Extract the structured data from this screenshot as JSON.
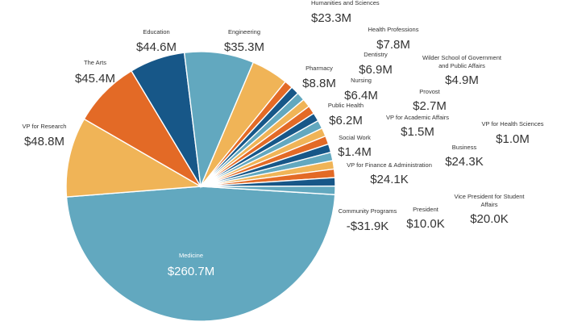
{
  "chart_data": {
    "type": "pie",
    "title": "",
    "colors": {
      "teal": "#62a8bf",
      "sand": "#f0b457",
      "orange": "#e36a26",
      "navy": "#175788"
    },
    "slices": [
      {
        "name": "Medicine",
        "label": "$260.7M",
        "value": 260.7,
        "color": "#62a8bf"
      },
      {
        "name": "VP for Research",
        "label": "$48.8M",
        "value": 48.8,
        "color": "#f0b457"
      },
      {
        "name": "The Arts",
        "label": "$45.4M",
        "value": 45.4,
        "color": "#e36a26"
      },
      {
        "name": "Education",
        "label": "$44.6M",
        "value": 44.6,
        "color": "#175788"
      },
      {
        "name": "Engineering",
        "label": "$35.3M",
        "value": 35.3,
        "color": "#62a8bf"
      },
      {
        "name": "Humanities and Sciences",
        "label": "$23.3M",
        "value": 23.3,
        "color": "#f0b457"
      },
      {
        "name": "Health Professions",
        "label": "$7.8M",
        "value": 7.8,
        "color": "#e36a26"
      },
      {
        "name": "Pharmacy",
        "label": "$8.8M",
        "value": 8.8,
        "color": "#175788"
      },
      {
        "name": "Dentistry",
        "label": "$6.9M",
        "value": 6.9,
        "color": "#62a8bf"
      },
      {
        "name": "Nursing",
        "label": "$6.4M",
        "value": 6.4,
        "color": "#f0b457"
      },
      {
        "name": "Wilder School of Government and Public Affairs",
        "label": "$4.9M",
        "value": 4.9,
        "color": "#e36a26"
      },
      {
        "name": "Public Health",
        "label": "$6.2M",
        "value": 6.2,
        "color": "#175788"
      },
      {
        "name": "Provost",
        "label": "$2.7M",
        "value": 2.7,
        "color": "#62a8bf"
      },
      {
        "name": "VP for Academic Affairs",
        "label": "$1.5M",
        "value": 1.5,
        "color": "#f0b457"
      },
      {
        "name": "VP for Health Sciences",
        "label": "$1.0M",
        "value": 1.0,
        "color": "#e36a26"
      },
      {
        "name": "Social Work",
        "label": "$1.4M",
        "value": 1.4,
        "color": "#175788"
      },
      {
        "name": "Business",
        "label": "$24.3K",
        "value": 0.0243,
        "color": "#62a8bf"
      },
      {
        "name": "VP for Finance & Administration",
        "label": "$24.1K",
        "value": 0.0241,
        "color": "#f0b457"
      },
      {
        "name": "Vice President for Student Affairs",
        "label": "$20.0K",
        "value": 0.02,
        "color": "#e36a26"
      },
      {
        "name": "President",
        "label": "$10.0K",
        "value": 0.01,
        "color": "#175788"
      },
      {
        "name": "Community Programs",
        "label": "-$31.9K",
        "value": -0.0319,
        "color": "#62a8bf"
      }
    ],
    "labels": [
      {
        "name": "Medicine",
        "value": "$260.7M"
      },
      {
        "name": "VP for Research",
        "value": "$48.8M"
      },
      {
        "name": "The Arts",
        "value": "$45.4M"
      },
      {
        "name": "Education",
        "value": "$44.6M"
      },
      {
        "name": "Engineering",
        "value": "$35.3M"
      },
      {
        "name": "Humanities and Sciences",
        "value": "$23.3M"
      },
      {
        "name": "Health Professions",
        "value": "$7.8M"
      },
      {
        "name": "Pharmacy",
        "value": "$8.8M"
      },
      {
        "name": "Dentistry",
        "value": "$6.9M"
      },
      {
        "name": "Nursing",
        "value": "$6.4M"
      },
      {
        "name": "Wilder School of Government",
        "name2": "and Public Affairs",
        "value": "$4.9M"
      },
      {
        "name": "Public Health",
        "value": "$6.2M"
      },
      {
        "name": "Provost",
        "value": "$2.7M"
      },
      {
        "name": "VP for Academic Affairs",
        "value": "$1.5M"
      },
      {
        "name": "VP for Health Sciences",
        "value": "$1.0M"
      },
      {
        "name": "Social Work",
        "value": "$1.4M"
      },
      {
        "name": "Business",
        "value": "$24.3K"
      },
      {
        "name": "VP for Finance & Administration",
        "value": "$24.1K"
      },
      {
        "name": "Vice President for Student",
        "name2": "Affairs",
        "value": "$20.0K"
      },
      {
        "name": "President",
        "value": "$10.0K"
      },
      {
        "name": "Community Programs",
        "value": "-$31.9K"
      }
    ]
  }
}
